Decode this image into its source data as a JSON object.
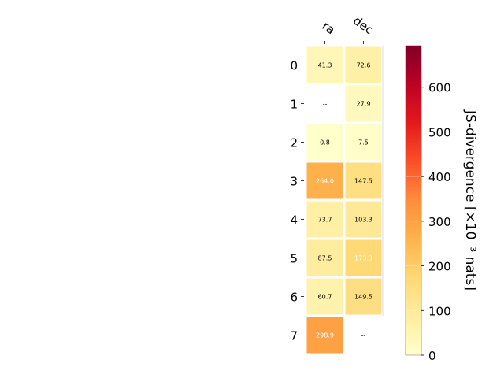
{
  "chart_data": {
    "type": "heatmap",
    "columns": [
      "ra",
      "dec"
    ],
    "rows": [
      "0",
      "1",
      "2",
      "3",
      "4",
      "5",
      "6",
      "7"
    ],
    "values": [
      [
        41.3,
        72.6
      ],
      [
        null,
        27.9
      ],
      [
        0.8,
        7.5
      ],
      [
        264.0,
        147.5
      ],
      [
        73.7,
        103.3
      ],
      [
        87.5,
        173.3
      ],
      [
        60.7,
        149.5
      ],
      [
        298.9,
        null
      ]
    ],
    "cell_labels": [
      [
        "41.3",
        "72.6"
      ],
      [
        "--",
        "27.9"
      ],
      [
        "0.8",
        "7.5"
      ],
      [
        "264.0",
        "147.5"
      ],
      [
        "73.7",
        "103.3"
      ],
      [
        "87.5",
        "173.3"
      ],
      [
        "60.7",
        "149.5"
      ],
      [
        "298.9",
        "--"
      ]
    ],
    "colorbar": {
      "label": "JS-divergence [×10⁻³ nats]",
      "range": [
        0,
        693
      ],
      "ticks": [
        "0",
        "100",
        "200",
        "300",
        "400",
        "500",
        "600"
      ],
      "tick_values": [
        0,
        100,
        200,
        300,
        400,
        500,
        600
      ],
      "colormap": "YlOrRd"
    },
    "missing_label": "--"
  }
}
